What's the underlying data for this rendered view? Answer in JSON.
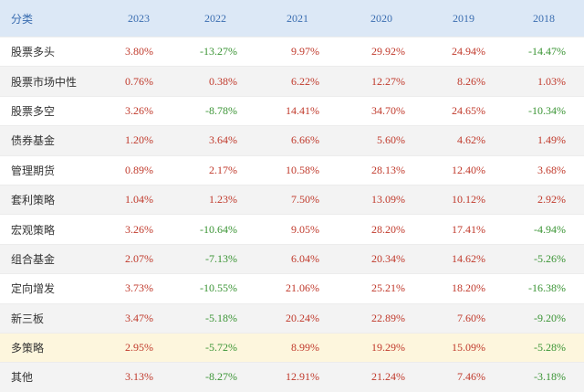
{
  "table": {
    "header": [
      "分类",
      "2023",
      "2022",
      "2021",
      "2020",
      "2019",
      "2018"
    ],
    "rows": [
      [
        "股票多头",
        "3.80%",
        "-13.27%",
        "9.97%",
        "29.92%",
        "24.94%",
        "-14.47%"
      ],
      [
        "股票市场中性",
        "0.76%",
        "0.38%",
        "6.22%",
        "12.27%",
        "8.26%",
        "1.03%"
      ],
      [
        "股票多空",
        "3.26%",
        "-8.78%",
        "14.41%",
        "34.70%",
        "24.65%",
        "-10.34%"
      ],
      [
        "债券基金",
        "1.20%",
        "3.64%",
        "6.66%",
        "5.60%",
        "4.62%",
        "1.49%"
      ],
      [
        "管理期货",
        "0.89%",
        "2.17%",
        "10.58%",
        "28.13%",
        "12.40%",
        "3.68%"
      ],
      [
        "套利策略",
        "1.04%",
        "1.23%",
        "7.50%",
        "13.09%",
        "10.12%",
        "2.92%"
      ],
      [
        "宏观策略",
        "3.26%",
        "-10.64%",
        "9.05%",
        "28.20%",
        "17.41%",
        "-4.94%"
      ],
      [
        "组合基金",
        "2.07%",
        "-7.13%",
        "6.04%",
        "20.34%",
        "14.62%",
        "-5.26%"
      ],
      [
        "定向增发",
        "3.73%",
        "-10.55%",
        "21.06%",
        "25.21%",
        "18.20%",
        "-16.38%"
      ],
      [
        "新三板",
        "3.47%",
        "-5.18%",
        "20.24%",
        "22.89%",
        "7.60%",
        "-9.20%"
      ],
      [
        "多策略",
        "2.95%",
        "-5.72%",
        "8.99%",
        "19.29%",
        "15.09%",
        "-5.28%"
      ],
      [
        "其他",
        "3.13%",
        "-8.27%",
        "12.91%",
        "21.24%",
        "7.46%",
        "-3.18%"
      ]
    ],
    "positive_color": "#c0392b",
    "negative_color": "#3a9434",
    "highlighted_row": 10
  }
}
